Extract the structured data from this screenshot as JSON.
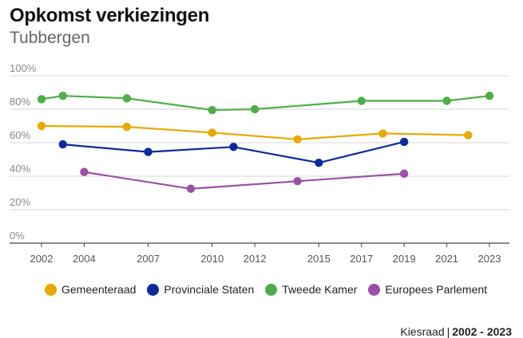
{
  "header": {
    "title": "Opkomst verkiezingen",
    "subtitle": "Tubbergen"
  },
  "source": {
    "label": "Kiesraad",
    "separator": "|",
    "period": "2002 - 2023"
  },
  "chart_data": {
    "type": "line",
    "title": "Opkomst verkiezingen",
    "subtitle": "Tubbergen",
    "xlabel": "",
    "ylabel": "",
    "xlim": [
      2002,
      2023
    ],
    "ylim": [
      0,
      100
    ],
    "y_ticks": [
      0,
      20,
      40,
      60,
      80,
      100
    ],
    "y_tick_labels": [
      "0%",
      "20%",
      "40%",
      "60%",
      "80%",
      "100%"
    ],
    "x_ticks": [
      2002,
      2004,
      2007,
      2010,
      2012,
      2015,
      2017,
      2019,
      2021,
      2023
    ],
    "x_tick_labels": [
      "2002",
      "2004",
      "2007",
      "2010",
      "2012",
      "2015",
      "2017",
      "2019",
      "2021",
      "2023"
    ],
    "grid": true,
    "legend_position": "bottom",
    "series": [
      {
        "name": "Gemeenteraad",
        "color": "#e8a900",
        "x": [
          2002,
          2006,
          2010,
          2014,
          2018,
          2022
        ],
        "values": [
          70,
          69.5,
          66,
          62,
          65.5,
          64.5
        ]
      },
      {
        "name": "Provinciale Staten",
        "color": "#0a2b9c",
        "x": [
          2003,
          2007,
          2011,
          2015,
          2019
        ],
        "values": [
          59,
          54.5,
          57.5,
          48,
          60.5
        ]
      },
      {
        "name": "Tweede Kamer",
        "color": "#4caf45",
        "x": [
          2002,
          2003,
          2006,
          2010,
          2012,
          2017,
          2021,
          2023
        ],
        "values": [
          86,
          88,
          86.5,
          79.5,
          80,
          85,
          85,
          88
        ]
      },
      {
        "name": "Europees Parlement",
        "color": "#9b4fa6",
        "x": [
          2004,
          2009,
          2014,
          2019
        ],
        "values": [
          42.5,
          32.5,
          37,
          41.5
        ]
      }
    ]
  }
}
